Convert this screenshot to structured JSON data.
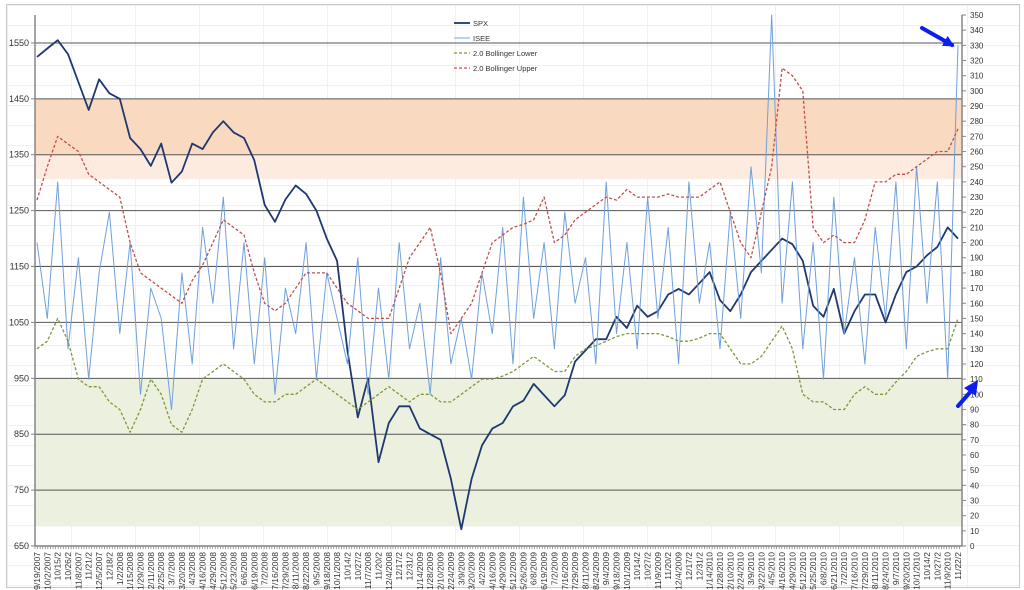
{
  "chart_data": {
    "type": "line",
    "title": "",
    "legend": {
      "placement": "top-center",
      "entries": [
        "SPX",
        "ISEE",
        "2.0 Bollinger Lower",
        "2.0 Bollinger Upper"
      ]
    },
    "left_axis": {
      "label": "",
      "range": [
        650,
        1600
      ],
      "ticks": [
        650,
        750,
        850,
        950,
        1050,
        1150,
        1250,
        1350,
        1450,
        1550
      ]
    },
    "right_axis": {
      "label": "",
      "range": [
        0,
        350
      ],
      "ticks": [
        0,
        10,
        20,
        30,
        40,
        50,
        60,
        70,
        80,
        90,
        100,
        110,
        120,
        130,
        140,
        150,
        160,
        170,
        180,
        190,
        200,
        210,
        220,
        230,
        240,
        250,
        260,
        270,
        280,
        290,
        300,
        310,
        320,
        330,
        340,
        350
      ]
    },
    "bands": [
      {
        "name": "overbought-strong",
        "axis": "left",
        "from": 1350,
        "to": 1450,
        "color": "#fad9c1"
      },
      {
        "name": "overbought-light",
        "axis": "right",
        "from": 242,
        "to": 258,
        "color": "#fdebdf"
      },
      {
        "name": "oversold",
        "axis": "right",
        "from": 13,
        "to": 110,
        "color": "#ebf1de"
      }
    ],
    "grid": true,
    "x": [
      "9/19/2007",
      "10/2/2007",
      "10/15/2",
      "10/26/2",
      "11/8/2007",
      "11/21/2",
      "12/5/2007",
      "12/18/2",
      "1/2/2008",
      "1/15/2008",
      "1/29/2008",
      "2/11/2008",
      "2/25/2008",
      "3/7/2008",
      "3/20/2008",
      "4/3/2008",
      "4/16/2008",
      "4/29/2008",
      "5/12/2008",
      "5/23/2008",
      "6/6/2008",
      "6/19/2008",
      "7/2/2008",
      "7/16/2008",
      "7/29/2008",
      "8/11/2008",
      "8/22/2008",
      "9/5/2008",
      "9/18/2008",
      "10/1/2008",
      "10/14/2",
      "10/27/2",
      "11/7/2008",
      "11/20/2",
      "12/4/2008",
      "12/17/2",
      "12/31/2",
      "1/14/2009",
      "1/28/2009",
      "2/10/2009",
      "2/24/2009",
      "3/9/2009",
      "3/20/2009",
      "4/2/2009",
      "4/16/2009",
      "4/29/2009",
      "5/12/2009",
      "5/26/2009",
      "6/8/2009",
      "6/19/2009",
      "7/2/2009",
      "7/16/2009",
      "7/29/2009",
      "8/11/2009",
      "8/24/2009",
      "9/4/2009",
      "9/18/2009",
      "10/1/2009",
      "10/14/2",
      "10/27/2",
      "11/9/2009",
      "11/20/2",
      "12/4/2009",
      "12/17/2",
      "12/31/2",
      "1/14/2010",
      "1/28/2010",
      "2/10/2010",
      "2/24/2010",
      "3/9/2010",
      "3/22/2010",
      "4/5/2010",
      "4/16/2010",
      "4/29/2010",
      "5/12/2010",
      "5/25/2010",
      "6/8/2010",
      "6/21/2010",
      "7/2/2010",
      "7/16/2010",
      "7/29/2010",
      "8/11/2010",
      "8/24/2010",
      "9/7/2010",
      "9/20/2010",
      "10/1/2010",
      "10/14/2",
      "10/27/2",
      "11/9/2010",
      "11/22/2"
    ],
    "series": [
      {
        "name": "SPX",
        "axis": "left",
        "color": "#1f3870",
        "style": "solid",
        "values": [
          1525,
          1540,
          1555,
          1530,
          1480,
          1430,
          1485,
          1460,
          1450,
          1380,
          1360,
          1330,
          1370,
          1300,
          1320,
          1370,
          1360,
          1390,
          1410,
          1390,
          1380,
          1340,
          1260,
          1230,
          1270,
          1295,
          1280,
          1250,
          1200,
          1160,
          1000,
          880,
          950,
          800,
          870,
          900,
          900,
          860,
          850,
          840,
          770,
          680,
          770,
          830,
          860,
          870,
          900,
          910,
          940,
          920,
          900,
          920,
          980,
          1000,
          1020,
          1020,
          1060,
          1040,
          1080,
          1060,
          1070,
          1100,
          1110,
          1100,
          1120,
          1140,
          1090,
          1070,
          1100,
          1140,
          1160,
          1180,
          1200,
          1190,
          1160,
          1080,
          1060,
          1110,
          1030,
          1070,
          1100,
          1100,
          1050,
          1100,
          1140,
          1150,
          1170,
          1185,
          1220,
          1200
        ]
      },
      {
        "name": "ISEE",
        "axis": "right",
        "color": "#6fa0dc",
        "style": "solid",
        "values": [
          200,
          150,
          240,
          130,
          190,
          110,
          180,
          220,
          140,
          200,
          100,
          170,
          150,
          90,
          180,
          120,
          210,
          160,
          230,
          130,
          200,
          120,
          190,
          100,
          170,
          140,
          200,
          110,
          180,
          150,
          120,
          190,
          100,
          170,
          110,
          200,
          130,
          160,
          100,
          190,
          120,
          150,
          110,
          180,
          140,
          210,
          120,
          230,
          150,
          200,
          130,
          220,
          160,
          190,
          120,
          240,
          140,
          200,
          130,
          230,
          150,
          210,
          120,
          240,
          160,
          200,
          130,
          220,
          150,
          250,
          180,
          350,
          160,
          240,
          130,
          200,
          110,
          230,
          140,
          190,
          120,
          210,
          150,
          240,
          130,
          250,
          160,
          240,
          110,
          330
        ]
      },
      {
        "name": "2.0 Bollinger Lower",
        "axis": "right",
        "color": "#7a9a3a",
        "style": "dashed",
        "values": [
          130,
          135,
          150,
          135,
          110,
          105,
          105,
          95,
          90,
          75,
          90,
          110,
          100,
          80,
          75,
          90,
          110,
          115,
          120,
          115,
          110,
          100,
          95,
          95,
          100,
          100,
          105,
          110,
          105,
          100,
          95,
          90,
          95,
          100,
          105,
          100,
          95,
          100,
          100,
          95,
          95,
          100,
          105,
          110,
          110,
          112,
          115,
          120,
          125,
          120,
          115,
          115,
          125,
          130,
          132,
          135,
          138,
          140,
          140,
          140,
          140,
          138,
          135,
          135,
          137,
          140,
          140,
          130,
          120,
          120,
          125,
          135,
          145,
          130,
          100,
          95,
          95,
          90,
          90,
          100,
          105,
          100,
          100,
          108,
          115,
          125,
          128,
          130,
          130,
          150
        ]
      },
      {
        "name": "2.0 Bollinger Upper",
        "axis": "right",
        "color": "#c0504d",
        "style": "dashed",
        "values": [
          228,
          250,
          270,
          265,
          260,
          245,
          240,
          235,
          230,
          200,
          180,
          175,
          170,
          165,
          160,
          175,
          185,
          200,
          215,
          210,
          205,
          180,
          160,
          155,
          160,
          170,
          180,
          180,
          180,
          170,
          160,
          155,
          150,
          150,
          150,
          170,
          190,
          200,
          210,
          180,
          140,
          150,
          160,
          180,
          200,
          205,
          210,
          212,
          215,
          230,
          200,
          205,
          215,
          220,
          225,
          230,
          228,
          235,
          230,
          230,
          230,
          232,
          230,
          230,
          230,
          235,
          240,
          220,
          200,
          190,
          220,
          250,
          315,
          310,
          300,
          210,
          200,
          205,
          200,
          200,
          215,
          240,
          240,
          245,
          245,
          250,
          255,
          260,
          260,
          275
        ]
      }
    ],
    "annotations": [
      {
        "type": "arrow",
        "color": "#0a1ef0",
        "target_series": "ISEE",
        "target_value": 330
      },
      {
        "type": "arrow",
        "color": "#0a1ef0",
        "target_series": "ISEE",
        "target_value": 110
      }
    ]
  }
}
